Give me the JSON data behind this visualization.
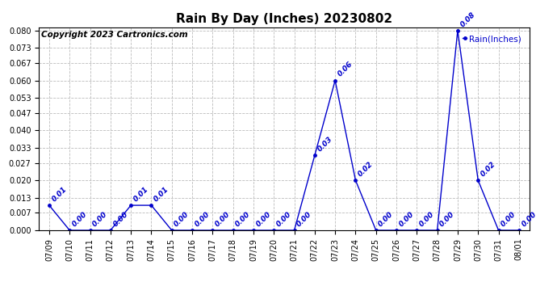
{
  "title": "Rain By Day (Inches) 20230802",
  "copyright_text": "Copyright 2023 Cartronics.com",
  "legend_label": "Rain(Inches)",
  "dates": [
    "07/09",
    "07/10",
    "07/11",
    "07/12",
    "07/13",
    "07/14",
    "07/15",
    "07/16",
    "07/17",
    "07/18",
    "07/19",
    "07/20",
    "07/21",
    "07/22",
    "07/23",
    "07/24",
    "07/25",
    "07/26",
    "07/27",
    "07/28",
    "07/29",
    "07/30",
    "07/31",
    "08/01"
  ],
  "values": [
    0.01,
    0.0,
    0.0,
    0.0,
    0.01,
    0.01,
    0.0,
    0.0,
    0.0,
    0.0,
    0.0,
    0.0,
    0.0,
    0.03,
    0.06,
    0.02,
    0.0,
    0.0,
    0.0,
    0.0,
    0.08,
    0.02,
    0.0,
    0.0
  ],
  "ylim": [
    0.0,
    0.0813
  ],
  "yticks": [
    0.0,
    0.007,
    0.013,
    0.02,
    0.027,
    0.033,
    0.04,
    0.047,
    0.053,
    0.06,
    0.067,
    0.073,
    0.08
  ],
  "line_color": "#0000cc",
  "marker_color": "#0000cc",
  "label_color": "#0000cc",
  "background_color": "white",
  "grid_color": "#bbbbbb",
  "title_fontsize": 11,
  "label_fontsize": 6.5,
  "tick_fontsize": 7,
  "copyright_fontsize": 7.5
}
